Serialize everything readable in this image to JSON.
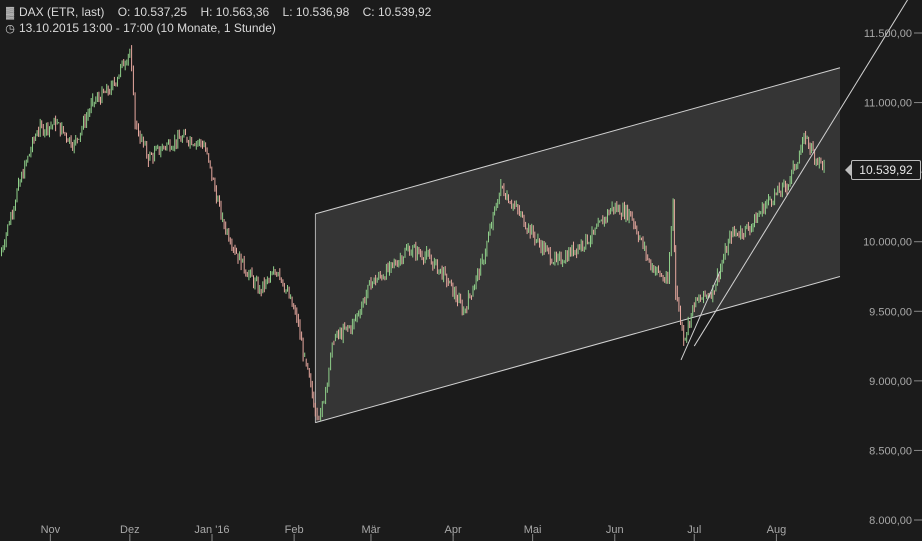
{
  "header": {
    "icon": "bar-chart-icon",
    "instrument": "DAX (ETR, last)",
    "open_label": "O:",
    "open": "10.537,25",
    "high_label": "H:",
    "high": "10.563,36",
    "low_label": "L:",
    "low": "10.536,98",
    "close_label": "C:",
    "close": "10.539,92",
    "clock_icon": "clock-icon",
    "period": "13.10.2015 13:00 - 17:00 (10 Monate, 1 Stunde)"
  },
  "price_marker": "10.539,92",
  "colors": {
    "background": "#1b1b1b",
    "up": "#8fcf8a",
    "down": "#e8a9a0",
    "lines": "#d0d0d0",
    "channel_fill": "#3a3a3a"
  },
  "chart_data": {
    "type": "line",
    "subtype": "ohlc",
    "interval": "1 Stunde",
    "y_axis": {
      "side": "right",
      "ylim": [
        8000,
        11500
      ],
      "ticks": [
        {
          "value": 8000,
          "label": "8.000,00"
        },
        {
          "value": 8500,
          "label": "8.500,00"
        },
        {
          "value": 9000,
          "label": "9.000,00"
        },
        {
          "value": 9500,
          "label": "9.500,00"
        },
        {
          "value": 10000,
          "label": "10.000,00"
        },
        {
          "value": 10500,
          "label": "10.500,00"
        },
        {
          "value": 11000,
          "label": "11.000,00"
        },
        {
          "value": 11500,
          "label": "11.500,00"
        }
      ]
    },
    "x_axis": {
      "ticks": [
        "Nov",
        "Dez",
        "Jan '16",
        "Feb",
        "Mär",
        "Apr",
        "Mai",
        "Jun",
        "Jul",
        "Aug"
      ]
    },
    "grid": false,
    "last_close": 10539.92,
    "x": [
      "2015-10-13",
      "2015-10-20",
      "2015-10-27",
      "2015-11-03",
      "2015-11-10",
      "2015-11-17",
      "2015-11-24",
      "2015-12-01",
      "2015-12-03",
      "2015-12-08",
      "2015-12-15",
      "2015-12-22",
      "2015-12-29",
      "2016-01-05",
      "2016-01-12",
      "2016-01-19",
      "2016-01-26",
      "2016-02-02",
      "2016-02-05",
      "2016-02-09",
      "2016-02-11",
      "2016-02-16",
      "2016-02-23",
      "2016-03-01",
      "2016-03-08",
      "2016-03-15",
      "2016-03-22",
      "2016-03-29",
      "2016-04-05",
      "2016-04-12",
      "2016-04-19",
      "2016-04-26",
      "2016-05-03",
      "2016-05-10",
      "2016-05-17",
      "2016-05-24",
      "2016-05-31",
      "2016-06-07",
      "2016-06-14",
      "2016-06-21",
      "2016-06-23",
      "2016-06-24",
      "2016-06-27",
      "2016-07-01",
      "2016-07-08",
      "2016-07-15",
      "2016-07-22",
      "2016-07-29",
      "2016-08-05",
      "2016-08-12",
      "2016-08-16",
      "2016-08-19"
    ],
    "close": [
      9900,
      10400,
      10800,
      10850,
      10700,
      11000,
      11100,
      11380,
      10850,
      10600,
      10700,
      10750,
      10700,
      10150,
      9850,
      9650,
      9800,
      9450,
      9150,
      8800,
      8750,
      9300,
      9400,
      9700,
      9800,
      9950,
      9900,
      9750,
      9500,
      9850,
      10400,
      10200,
      10000,
      9850,
      9950,
      10050,
      10250,
      10200,
      9850,
      9700,
      10300,
      9650,
      9300,
      9550,
      9650,
      10050,
      10100,
      10300,
      10400,
      10750,
      10600,
      10540
    ],
    "series": [
      {
        "name": "",
        "type": "line",
        "points": [
          [
            "2016-02-09",
            8700
          ],
          [
            "2016-08-25",
            11250
          ]
        ]
      },
      {
        "name": "",
        "type": "line",
        "points": [
          [
            "2016-02-09",
            10200
          ],
          [
            "2016-08-25",
            9750
          ]
        ]
      },
      {
        "name": "",
        "type": "line",
        "points": [
          [
            "2016-06-26",
            9150
          ],
          [
            "2016-08-25",
            11750
          ]
        ]
      },
      {
        "name": "",
        "type": "line",
        "points": [
          [
            "2016-07-01",
            9250
          ],
          [
            "2016-08-25",
            10950
          ]
        ]
      }
    ]
  }
}
